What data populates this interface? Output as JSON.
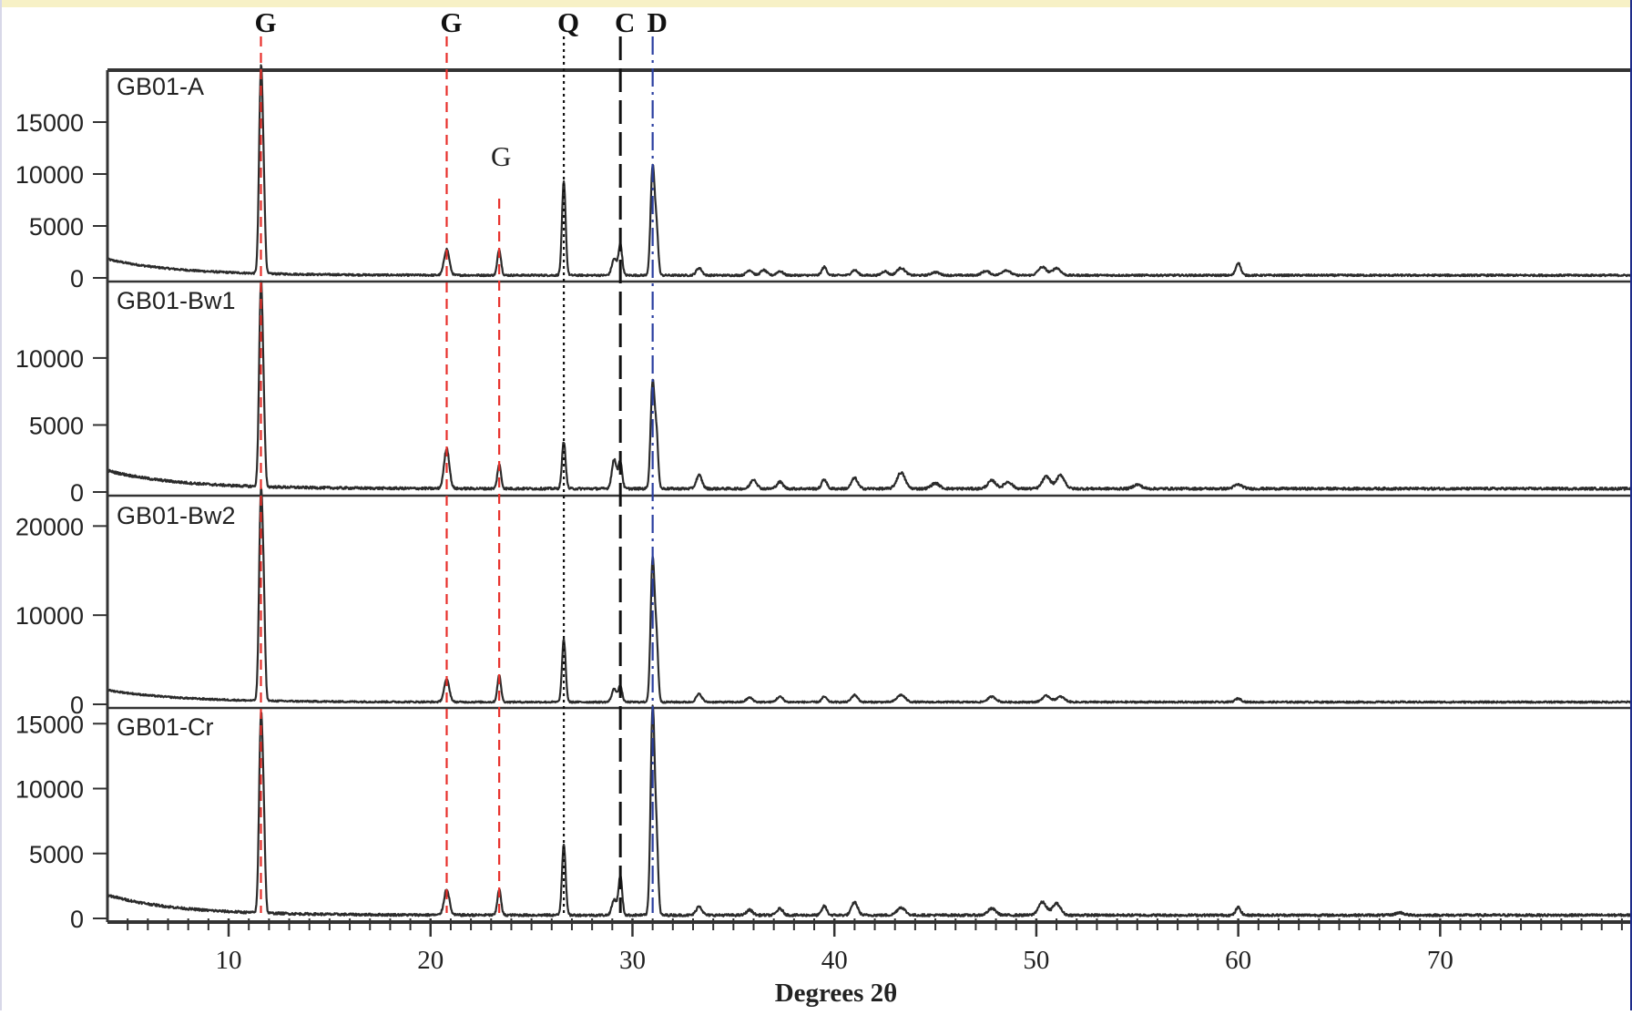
{
  "chart_data": {
    "type": "line",
    "xlabel": "Degrees 2θ",
    "x_ticks": [
      10,
      20,
      30,
      40,
      50,
      60,
      70
    ],
    "xlim": [
      4,
      79.5
    ],
    "grid": false,
    "phase_markers": [
      {
        "label": "G",
        "x": 11.6,
        "color": "#e8302b",
        "style": "dashed",
        "top_label": true
      },
      {
        "label": "G",
        "x": 20.8,
        "color": "#e8302b",
        "style": "dashed",
        "top_label": true
      },
      {
        "label": "G",
        "x": 23.4,
        "color": "#e8302b",
        "style": "dashed",
        "top_label": false
      },
      {
        "label": "Q",
        "x": 26.6,
        "color": "#111111",
        "style": "dotted",
        "top_label": true
      },
      {
        "label": "C",
        "x": 29.4,
        "color": "#111111",
        "style": "longdash",
        "top_label": true
      },
      {
        "label": "D",
        "x": 31.0,
        "color": "#2a3fa0",
        "style": "dashdot",
        "top_label": true
      }
    ],
    "panels": [
      {
        "name": "GB01-A",
        "ylim": [
          0,
          20000
        ],
        "y_ticks": [
          0,
          5000,
          10000,
          15000
        ],
        "baseline": {
          "start": 1800,
          "end": 250,
          "decay": 3.5
        },
        "peaks": [
          [
            11.6,
            19500,
            0.09
          ],
          [
            11.75,
            5500,
            0.07
          ],
          [
            20.8,
            2500,
            0.13
          ],
          [
            23.4,
            2500,
            0.09
          ],
          [
            26.6,
            9000,
            0.09
          ],
          [
            29.1,
            1600,
            0.12
          ],
          [
            29.4,
            3000,
            0.09
          ],
          [
            31.0,
            10500,
            0.1
          ],
          [
            31.2,
            4000,
            0.08
          ],
          [
            33.3,
            700,
            0.14
          ],
          [
            35.8,
            500,
            0.15
          ],
          [
            36.5,
            500,
            0.15
          ],
          [
            37.3,
            400,
            0.15
          ],
          [
            39.5,
            800,
            0.12
          ],
          [
            41.0,
            500,
            0.15
          ],
          [
            42.5,
            400,
            0.15
          ],
          [
            43.3,
            700,
            0.2
          ],
          [
            45.0,
            300,
            0.2
          ],
          [
            47.5,
            400,
            0.2
          ],
          [
            48.5,
            500,
            0.2
          ],
          [
            50.3,
            800,
            0.2
          ],
          [
            51.0,
            700,
            0.2
          ],
          [
            60.0,
            1200,
            0.12
          ]
        ]
      },
      {
        "name": "GB01-Bw1",
        "ylim": [
          0,
          15500
        ],
        "y_ticks": [
          0,
          5000,
          10000
        ],
        "baseline": {
          "start": 1600,
          "end": 250,
          "decay": 3.5
        },
        "peaks": [
          [
            11.6,
            15000,
            0.09
          ],
          [
            11.75,
            3500,
            0.07
          ],
          [
            20.8,
            3000,
            0.13
          ],
          [
            23.4,
            1800,
            0.09
          ],
          [
            26.6,
            3500,
            0.09
          ],
          [
            29.1,
            2200,
            0.12
          ],
          [
            29.4,
            2000,
            0.09
          ],
          [
            31.0,
            8000,
            0.1
          ],
          [
            31.2,
            3500,
            0.08
          ],
          [
            33.3,
            1000,
            0.14
          ],
          [
            36.0,
            700,
            0.15
          ],
          [
            37.3,
            500,
            0.15
          ],
          [
            39.5,
            700,
            0.12
          ],
          [
            41.0,
            800,
            0.15
          ],
          [
            43.3,
            1200,
            0.2
          ],
          [
            45.0,
            400,
            0.2
          ],
          [
            47.8,
            600,
            0.2
          ],
          [
            48.6,
            500,
            0.2
          ],
          [
            50.5,
            900,
            0.2
          ],
          [
            51.2,
            1000,
            0.2
          ],
          [
            55.0,
            300,
            0.2
          ],
          [
            60.0,
            300,
            0.2
          ]
        ]
      },
      {
        "name": "GB01-Bw2",
        "ylim": [
          0,
          23000
        ],
        "y_ticks": [
          0,
          10000,
          20000
        ],
        "baseline": {
          "start": 1600,
          "end": 250,
          "decay": 3.5
        },
        "peaks": [
          [
            11.6,
            23000,
            0.09
          ],
          [
            11.75,
            8000,
            0.07
          ],
          [
            20.8,
            2500,
            0.13
          ],
          [
            23.4,
            3000,
            0.09
          ],
          [
            26.6,
            7000,
            0.09
          ],
          [
            29.1,
            1500,
            0.12
          ],
          [
            29.4,
            1800,
            0.09
          ],
          [
            31.0,
            16000,
            0.1
          ],
          [
            31.2,
            6000,
            0.08
          ],
          [
            33.3,
            900,
            0.14
          ],
          [
            35.8,
            500,
            0.15
          ],
          [
            37.3,
            600,
            0.15
          ],
          [
            39.5,
            600,
            0.12
          ],
          [
            41.0,
            800,
            0.15
          ],
          [
            43.3,
            800,
            0.2
          ],
          [
            47.8,
            600,
            0.2
          ],
          [
            50.5,
            700,
            0.2
          ],
          [
            51.2,
            600,
            0.2
          ],
          [
            60.0,
            400,
            0.15
          ]
        ]
      },
      {
        "name": "GB01-Cr",
        "ylim": [
          0,
          16000
        ],
        "y_ticks": [
          0,
          5000,
          10000,
          15000
        ],
        "baseline": {
          "start": 1800,
          "end": 250,
          "decay": 3.5
        },
        "peaks": [
          [
            11.6,
            15000,
            0.09
          ],
          [
            11.75,
            5000,
            0.07
          ],
          [
            20.8,
            2000,
            0.13
          ],
          [
            23.4,
            2000,
            0.09
          ],
          [
            26.6,
            5500,
            0.09
          ],
          [
            29.1,
            1200,
            0.12
          ],
          [
            29.4,
            3000,
            0.09
          ],
          [
            31.0,
            16000,
            0.1
          ],
          [
            31.2,
            5000,
            0.08
          ],
          [
            33.3,
            700,
            0.14
          ],
          [
            35.8,
            400,
            0.15
          ],
          [
            37.3,
            500,
            0.15
          ],
          [
            39.5,
            700,
            0.12
          ],
          [
            41.0,
            1000,
            0.15
          ],
          [
            43.3,
            600,
            0.2
          ],
          [
            47.8,
            500,
            0.2
          ],
          [
            50.3,
            1000,
            0.2
          ],
          [
            51.0,
            900,
            0.2
          ],
          [
            60.0,
            600,
            0.12
          ],
          [
            68.0,
            200,
            0.2
          ]
        ]
      }
    ]
  },
  "colors": {
    "trace": "#2b2b2b",
    "axis": "#333333",
    "label": "#222222",
    "top_band": "#f7f1c6",
    "right_strip": "#1f2d8a"
  }
}
